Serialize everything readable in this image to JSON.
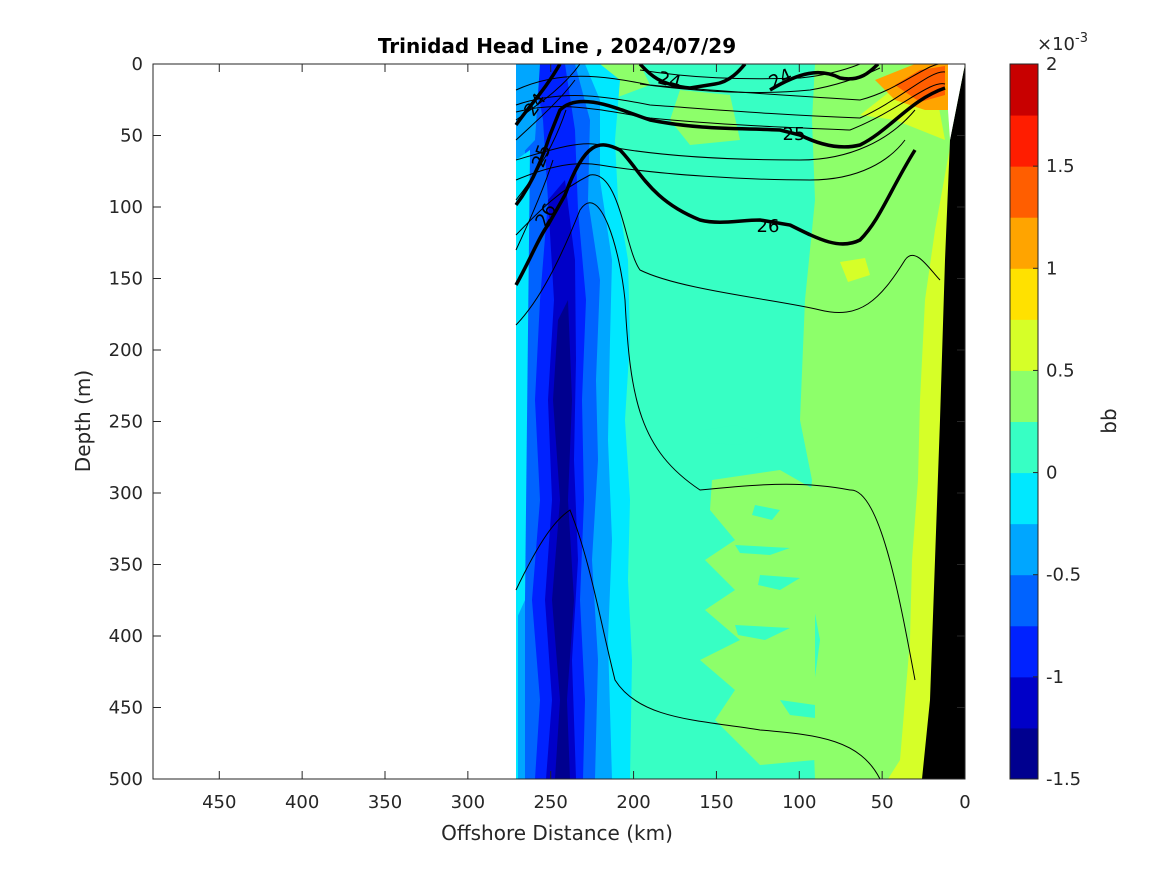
{
  "chart_data": {
    "type": "heatmap",
    "title": "Trinidad Head Line , 2024/07/29",
    "xlabel": "Offshore Distance (km)",
    "ylabel": "Depth (m)",
    "xlim": [
      490,
      0
    ],
    "ylim": [
      0,
      500
    ],
    "x_ticks": [
      "450",
      "400",
      "350",
      "300",
      "250",
      "200",
      "150",
      "100",
      "50",
      "0"
    ],
    "y_ticks": [
      "0",
      "50",
      "100",
      "150",
      "200",
      "250",
      "300",
      "350",
      "400",
      "450",
      "500"
    ],
    "colorbar": {
      "label": "bb",
      "exponent_text": "×10",
      "exponent_power": "-3",
      "range": [
        -1.5,
        2
      ],
      "tick_labels": [
        "2",
        "1.5",
        "1",
        "0.5",
        "0",
        "-0.5",
        "-1",
        "-1.5"
      ],
      "levels": [
        {
          "from": -1.5,
          "to": -1.25,
          "color": "#00008f"
        },
        {
          "from": -1.25,
          "to": -1.0,
          "color": "#0000c8"
        },
        {
          "from": -1.0,
          "to": -0.75,
          "color": "#0022ff"
        },
        {
          "from": -0.75,
          "to": -0.5,
          "color": "#0063ff"
        },
        {
          "from": -0.5,
          "to": -0.25,
          "color": "#00a6ff"
        },
        {
          "from": -0.25,
          "to": 0.0,
          "color": "#00e8ff"
        },
        {
          "from": 0.0,
          "to": 0.25,
          "color": "#37ffc4"
        },
        {
          "from": 0.25,
          "to": 0.5,
          "color": "#8dff6a"
        },
        {
          "from": 0.5,
          "to": 0.75,
          "color": "#d6ff28"
        },
        {
          "from": 0.75,
          "to": 1.0,
          "color": "#ffe100"
        },
        {
          "from": 1.0,
          "to": 1.25,
          "color": "#ffa400"
        },
        {
          "from": 1.25,
          "to": 1.5,
          "color": "#ff5e00"
        },
        {
          "from": 1.5,
          "to": 1.75,
          "color": "#ff1d00"
        },
        {
          "from": 1.75,
          "to": 2.0,
          "color": "#c80000"
        }
      ]
    },
    "contour_labels": [
      "24",
      "24",
      "24",
      "25",
      "25",
      "26",
      "26"
    ],
    "bathymetry_color": "#000000"
  }
}
